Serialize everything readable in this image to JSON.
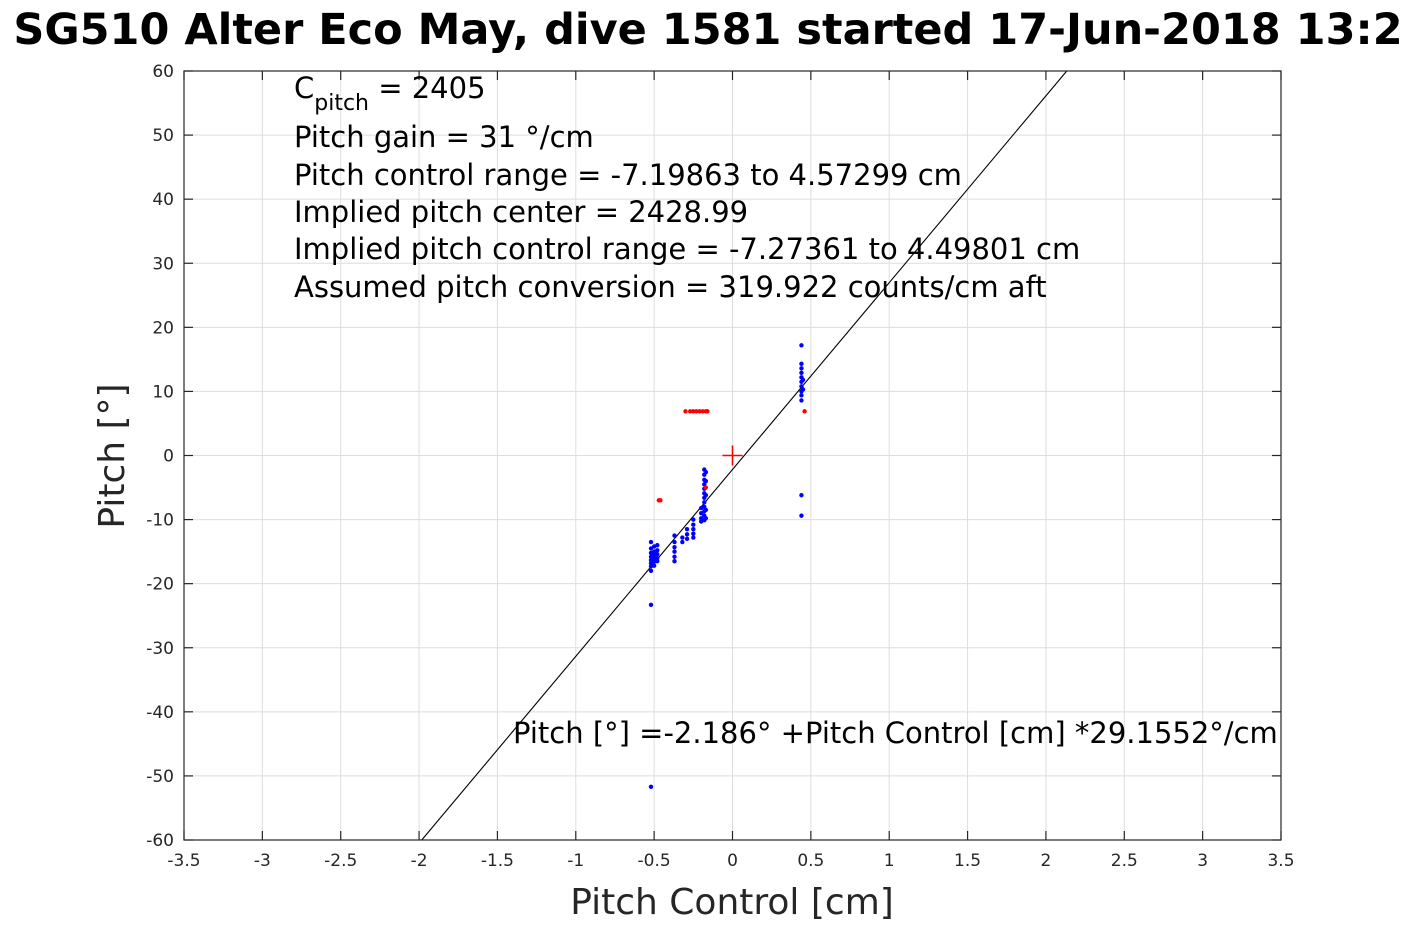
{
  "chart_data": {
    "type": "scatter",
    "title": "SG510 Alter Eco May, dive 1581 started 17-Jun-2018 13:2",
    "xlabel": "Pitch Control [cm]",
    "ylabel": "Pitch [°]",
    "xlim": [
      -3.5,
      3.5
    ],
    "ylim": [
      -60,
      60
    ],
    "xticks": [
      -3.5,
      -3,
      -2.5,
      -2,
      -1.5,
      -1,
      -0.5,
      0,
      0.5,
      1,
      1.5,
      2,
      2.5,
      3,
      3.5
    ],
    "yticks": [
      -60,
      -50,
      -40,
      -30,
      -20,
      -10,
      0,
      10,
      20,
      30,
      40,
      50,
      60
    ],
    "xtick_labels": [
      "-3.5",
      "-3",
      "-2.5",
      "-2",
      "-1.5",
      "-1",
      "-0.5",
      "0",
      "0.5",
      "1",
      "1.5",
      "2",
      "2.5",
      "3",
      "3.5"
    ],
    "ytick_labels": [
      "-60",
      "-50",
      "-40",
      "-30",
      "-20",
      "-10",
      "0",
      "10",
      "20",
      "30",
      "40",
      "50",
      "60"
    ],
    "grid": true,
    "annotations": {
      "c_pitch_main": "C",
      "c_pitch_sub": "pitch",
      "c_pitch_value": " = 2405",
      "line2": "Pitch gain = 31 °/cm",
      "line3": "Pitch control range = -7.19863 to 4.57299 cm",
      "line4": "Implied pitch center = 2428.99",
      "line5": "Implied pitch control range = -7.27361 to 4.49801 cm",
      "line6": "Assumed pitch conversion = 319.922 counts/cm aft",
      "fit_equation": "Pitch [°] =-2.186° +Pitch Control [cm] *29.1552°/cm"
    },
    "fit": {
      "intercept": -2.186,
      "slope": 29.1552
    },
    "center_marker": {
      "x": 0,
      "y": 0,
      "color": "#ff0000"
    },
    "series": [
      {
        "color": "#0000ff",
        "points": [
          [
            -0.52,
            -13.5
          ],
          [
            -0.52,
            -14.5
          ],
          [
            -0.52,
            -15.2
          ],
          [
            -0.52,
            -15.8
          ],
          [
            -0.52,
            -16.3
          ],
          [
            -0.52,
            -16.8
          ],
          [
            -0.52,
            -17.3
          ],
          [
            -0.52,
            -18.0
          ],
          [
            -0.5,
            -14.2
          ],
          [
            -0.5,
            -15.0
          ],
          [
            -0.5,
            -15.5
          ],
          [
            -0.5,
            -16.0
          ],
          [
            -0.5,
            -16.6
          ],
          [
            -0.5,
            -17.2
          ],
          [
            -0.48,
            -14.0
          ],
          [
            -0.48,
            -14.8
          ],
          [
            -0.48,
            -15.4
          ],
          [
            -0.48,
            -16.0
          ],
          [
            -0.48,
            -16.5
          ],
          [
            -0.52,
            -23.3
          ],
          [
            -0.52,
            -51.7
          ],
          [
            -0.37,
            -12.5
          ],
          [
            -0.37,
            -13.5
          ],
          [
            -0.37,
            -14.3
          ],
          [
            -0.37,
            -15.0
          ],
          [
            -0.37,
            -15.8
          ],
          [
            -0.37,
            -16.5
          ],
          [
            -0.32,
            -12.8
          ],
          [
            -0.32,
            -13.5
          ],
          [
            -0.29,
            -11.5
          ],
          [
            -0.29,
            -12.3
          ],
          [
            -0.29,
            -13.0
          ],
          [
            -0.25,
            -10.0
          ],
          [
            -0.25,
            -10.8
          ],
          [
            -0.25,
            -11.5
          ],
          [
            -0.25,
            -12.2
          ],
          [
            -0.25,
            -12.8
          ],
          [
            -0.2,
            -8.2
          ],
          [
            -0.2,
            -9.0
          ],
          [
            -0.2,
            -9.8
          ],
          [
            -0.2,
            -10.3
          ],
          [
            -0.18,
            -2.2
          ],
          [
            -0.18,
            -3.0
          ],
          [
            -0.18,
            -3.8
          ],
          [
            -0.18,
            -4.5
          ],
          [
            -0.18,
            -5.2
          ],
          [
            -0.18,
            -5.9
          ],
          [
            -0.18,
            -6.6
          ],
          [
            -0.18,
            -7.3
          ],
          [
            -0.18,
            -8.0
          ],
          [
            -0.18,
            -8.7
          ],
          [
            -0.18,
            -9.4
          ],
          [
            -0.18,
            -10.1
          ],
          [
            -0.17,
            -2.6
          ],
          [
            -0.17,
            -4.0
          ],
          [
            -0.17,
            -6.2
          ],
          [
            -0.17,
            -8.5
          ],
          [
            -0.17,
            -9.8
          ],
          [
            0.44,
            17.2
          ],
          [
            0.44,
            14.3
          ],
          [
            0.44,
            13.6
          ],
          [
            0.44,
            12.9
          ],
          [
            0.44,
            12.2
          ],
          [
            0.44,
            11.5
          ],
          [
            0.44,
            10.8
          ],
          [
            0.44,
            10.0
          ],
          [
            0.44,
            9.4
          ],
          [
            0.44,
            8.6
          ],
          [
            0.45,
            11.8
          ],
          [
            0.45,
            10.3
          ],
          [
            0.44,
            -6.2
          ],
          [
            0.44,
            -9.4
          ]
        ]
      },
      {
        "color": "#ff0000",
        "points": [
          [
            -0.47,
            -7.0
          ],
          [
            -0.46,
            -7.0
          ],
          [
            -0.3,
            6.9
          ],
          [
            -0.27,
            6.9
          ],
          [
            -0.25,
            6.9
          ],
          [
            -0.23,
            6.9
          ],
          [
            -0.21,
            6.9
          ],
          [
            -0.19,
            6.9
          ],
          [
            -0.17,
            6.9
          ],
          [
            -0.16,
            6.9
          ],
          [
            -0.17,
            -5.0
          ],
          [
            0.46,
            6.9
          ]
        ]
      }
    ]
  }
}
